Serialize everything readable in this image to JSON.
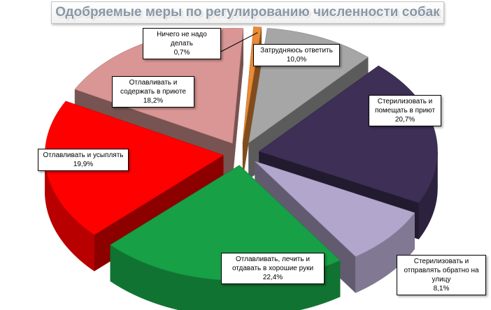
{
  "chart_data": {
    "type": "pie",
    "title": "Одобряемые меры по регулированию численности собак",
    "slices": [
      {
        "label": "Затрудняюсь ответить",
        "value": 10.0,
        "display": "10,0%",
        "color": "#a6a6a6"
      },
      {
        "label": "Стерилизовать и помещать в приют",
        "value": 20.7,
        "display": "20,7%",
        "color": "#3d2f55"
      },
      {
        "label": "Стерилизовать и отправлять обратно на улицу",
        "value": 8.1,
        "display": "8,1%",
        "color": "#b3a6cc"
      },
      {
        "label": "Отлавливать, лечить и отдавать в хорошие руки",
        "value": 22.4,
        "display": "22,4%",
        "color": "#17a046"
      },
      {
        "label": "Отлавливать и усыплять",
        "value": 19.9,
        "display": "19,9%",
        "color": "#ff0000"
      },
      {
        "label": "Отлавливать и содержать в приюте",
        "value": 18.2,
        "display": "18,2%",
        "color": "#d99694"
      },
      {
        "label": "Ничего не надо делать",
        "value": 0.7,
        "display": "0,7%",
        "color": "#e98a35"
      }
    ],
    "legend": "none"
  }
}
